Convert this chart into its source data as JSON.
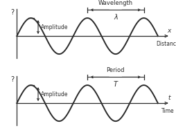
{
  "background_color": "#ffffff",
  "wave_color": "#2a2a2a",
  "axis_color": "#2a2a2a",
  "text_color": "#2a2a2a",
  "fig_width": 2.55,
  "fig_height": 1.98,
  "dpi": 100,
  "n_cycles": 2.5,
  "top_panel": {
    "xlabel": "x",
    "xlabel2": "Distance",
    "ylabel": "?",
    "wavelength_label": "Wavelength",
    "lambda_label": "λ",
    "amplitude_label": "Amplitude"
  },
  "bottom_panel": {
    "xlabel": "t",
    "xlabel2": "Time",
    "ylabel": "?",
    "period_label": "Period",
    "T_label": "T",
    "amplitude_label": "Amplitude"
  }
}
